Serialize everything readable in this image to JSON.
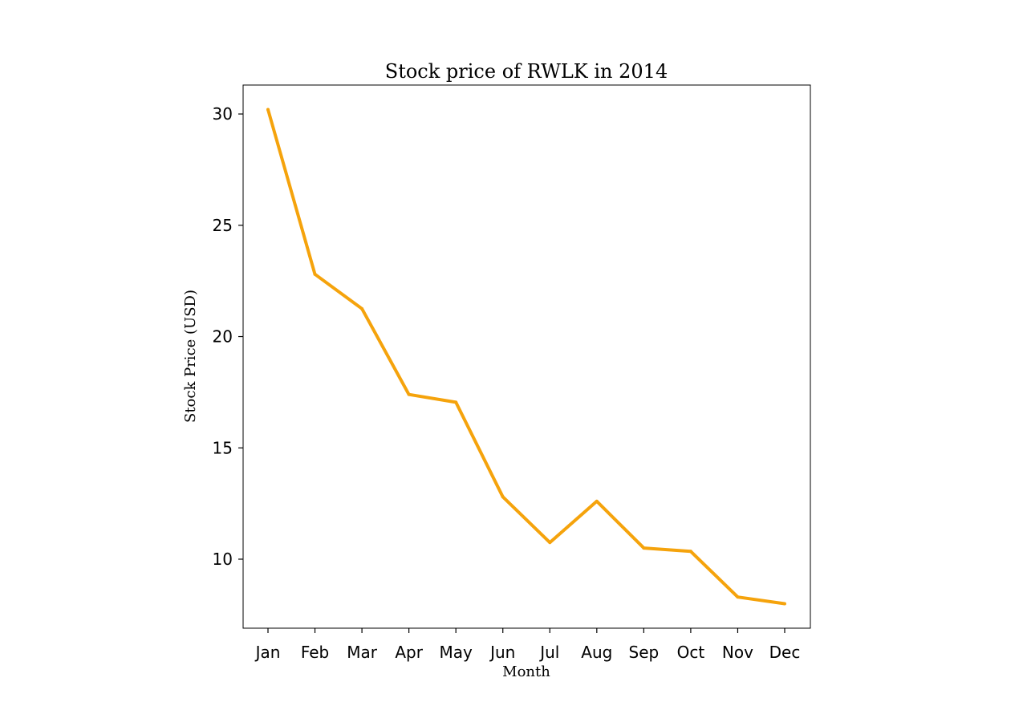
{
  "chart_data": {
    "type": "line",
    "title": "Stock price of RWLK in 2014",
    "xlabel": "Month",
    "ylabel": "Stock Price (USD)",
    "categories": [
      "Jan",
      "Feb",
      "Mar",
      "Apr",
      "May",
      "Jun",
      "Jul",
      "Aug",
      "Sep",
      "Oct",
      "Nov",
      "Dec"
    ],
    "series": [
      {
        "values": [
          30.2,
          22.8,
          21.25,
          17.4,
          17.05,
          12.8,
          10.75,
          12.6,
          10.5,
          10.35,
          8.3,
          8.0
        ],
        "color": "#f5a30c"
      }
    ],
    "yticks": [
      10,
      15,
      20,
      25,
      30
    ],
    "ylim": [
      6.9,
      31.3
    ],
    "grid": false,
    "legend": "none"
  }
}
